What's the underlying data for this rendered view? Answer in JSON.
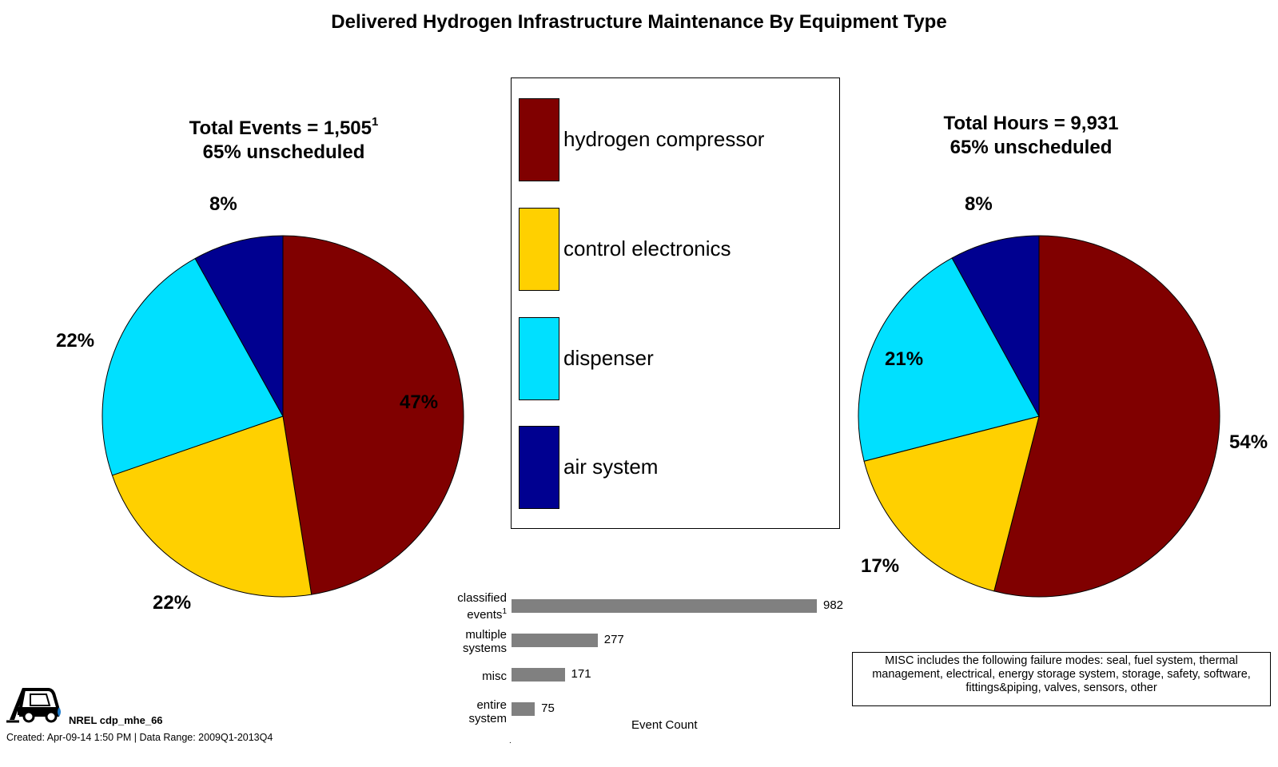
{
  "title": "Delivered Hydrogen Infrastructure Maintenance By Equipment Type",
  "colors": {
    "hydrogen_compressor": "#800000",
    "control_electronics": "#FFD000",
    "dispenser": "#00E0FF",
    "air_system": "#000090",
    "bar": "#808080"
  },
  "left_pie": {
    "title_line1": "Total Events = 1,505",
    "title_sup": "1",
    "title_line2": "65% unscheduled"
  },
  "right_pie": {
    "title_line1": "Total Hours = 9,931",
    "title_line2": "65% unscheduled"
  },
  "legend": [
    {
      "label": "hydrogen compressor",
      "color": "#800000"
    },
    {
      "label": "control electronics",
      "color": "#FFD000"
    },
    {
      "label": "dispenser",
      "color": "#00E0FF"
    },
    {
      "label": "air system",
      "color": "#000090"
    }
  ],
  "bar_chart": {
    "xlabel": "Event Count",
    "rows": [
      {
        "label_line1": "classified",
        "label_line2": "events",
        "label_sup": "1",
        "value_label": "982"
      },
      {
        "label_line1": "multiple",
        "label_line2": "systems",
        "value_label": "277"
      },
      {
        "label_line1": "misc",
        "label_line2": "",
        "value_label": "171"
      },
      {
        "label_line1": "entire",
        "label_line2": "system",
        "value_label": "75"
      }
    ]
  },
  "misc_note": "MISC includes the following failure modes: seal, fuel system, thermal management, electrical, energy storage system, storage, safety, software, fittings&piping, valves, sensors, other",
  "footer": {
    "id": "NREL cdp_mhe_66",
    "created": "Created: Apr-09-14  1:50 PM | Data Range: 2009Q1-2013Q4"
  },
  "chart_data": [
    {
      "type": "pie",
      "title": "Total Events = 1,505",
      "subtitle": "65% unscheduled",
      "categories": [
        "hydrogen compressor",
        "control electronics",
        "dispenser",
        "air system"
      ],
      "values": [
        47,
        22,
        22,
        8
      ],
      "value_labels": [
        "47%",
        "22%",
        "22%",
        "8%"
      ]
    },
    {
      "type": "pie",
      "title": "Total Hours = 9,931",
      "subtitle": "65% unscheduled",
      "categories": [
        "hydrogen compressor",
        "control electronics",
        "dispenser",
        "air system"
      ],
      "values": [
        54,
        17,
        21,
        8
      ],
      "value_labels": [
        "54%",
        "17%",
        "21%",
        "8%"
      ]
    },
    {
      "type": "bar",
      "orientation": "horizontal",
      "categories": [
        "classified events",
        "multiple systems",
        "misc",
        "entire system"
      ],
      "values": [
        982,
        277,
        171,
        75
      ],
      "xlabel": "Event Count",
      "xlim": [
        0,
        982
      ]
    }
  ]
}
